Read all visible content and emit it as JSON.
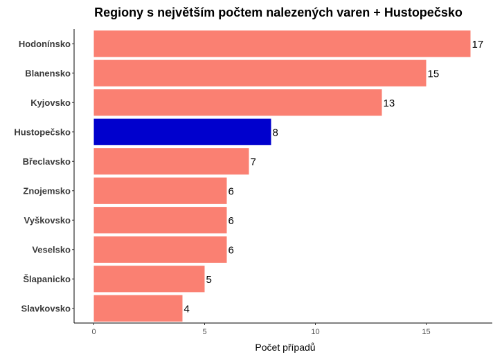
{
  "chart_data": {
    "type": "bar",
    "orientation": "horizontal",
    "title": "Regiony s největším počtem nalezených varen + Hustopečsko",
    "xlabel": "Počet případů",
    "ylabel": "",
    "categories": [
      "Hodonínsko",
      "Blanensko",
      "Kyjovsko",
      "Hustopečsko",
      "Břeclavsko",
      "Znojemsko",
      "Vyškovsko",
      "Veselsko",
      "Šlapanicko",
      "Slavkovsko"
    ],
    "values": [
      17,
      15,
      13,
      8,
      7,
      6,
      6,
      6,
      5,
      4
    ],
    "highlight": "Hustopečsko",
    "colors": {
      "default": "#fa8072",
      "highlight": "#0000cd"
    },
    "xlim": [
      0,
      17.85
    ],
    "xticks": [
      0,
      5,
      10,
      15
    ],
    "grid": false,
    "data_labels": true
  }
}
